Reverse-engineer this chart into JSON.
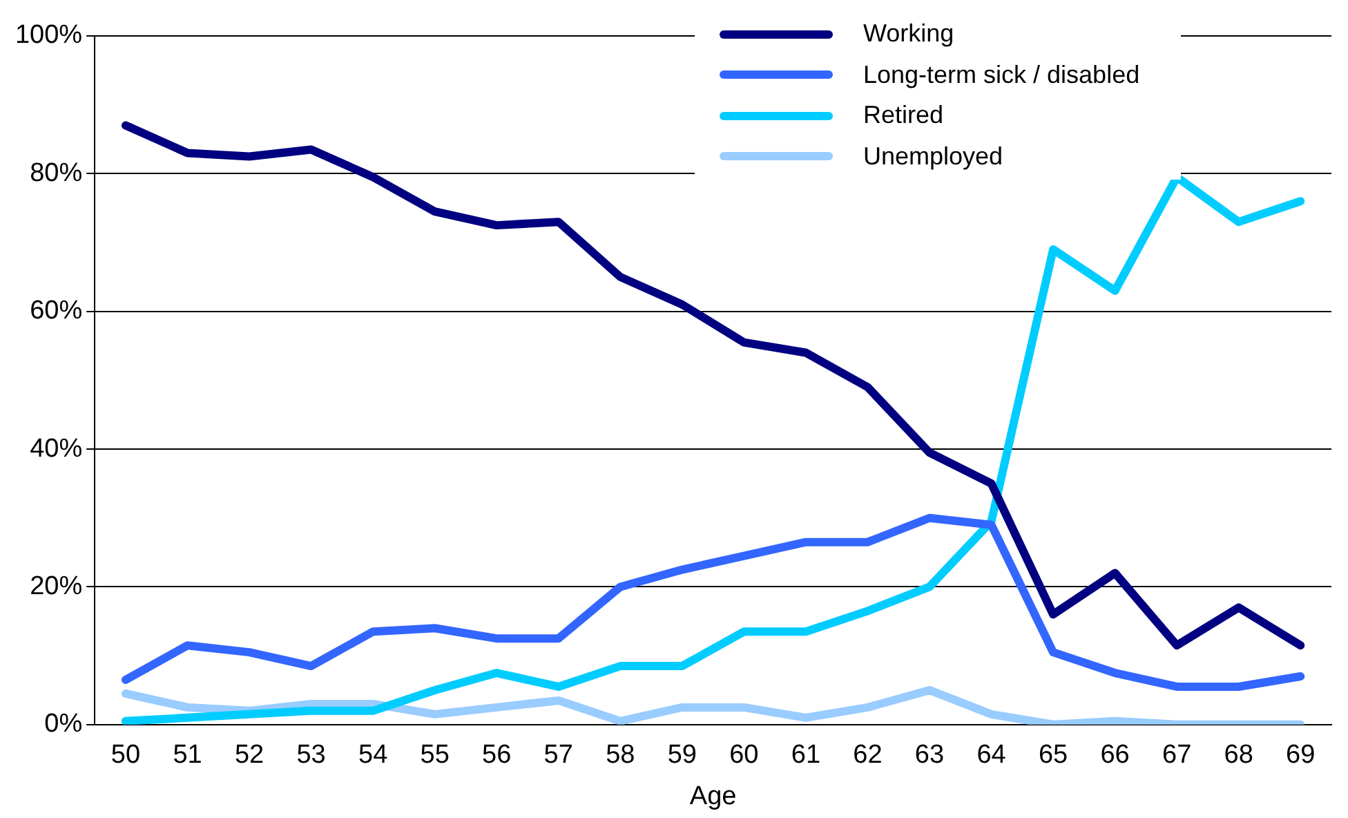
{
  "chart_data": {
    "type": "line",
    "xlabel": "Age",
    "categories": [
      "50",
      "51",
      "52",
      "53",
      "54",
      "55",
      "56",
      "57",
      "58",
      "59",
      "60",
      "61",
      "62",
      "63",
      "64",
      "65",
      "66",
      "67",
      "68",
      "69"
    ],
    "series": [
      {
        "name": "Working",
        "color": "#000080",
        "values": [
          87,
          83,
          82.5,
          83.5,
          79.5,
          74.5,
          72.5,
          73,
          65,
          61,
          55.5,
          54,
          49,
          39.5,
          35,
          16,
          22,
          11.5,
          17,
          11.5
        ]
      },
      {
        "name": "Long-term sick / disabled",
        "color": "#3366ff",
        "values": [
          6.5,
          11.5,
          10.5,
          8.5,
          13.5,
          14,
          12.5,
          12.5,
          20,
          22.5,
          24.5,
          26.5,
          26.5,
          30,
          29,
          10.5,
          7.5,
          5.5,
          5.5,
          7
        ]
      },
      {
        "name": "Retired",
        "color": "#00ccff",
        "values": [
          0.5,
          1,
          1.5,
          2,
          2,
          5,
          7.5,
          5.5,
          8.5,
          8.5,
          13.5,
          13.5,
          16.5,
          20,
          29.5,
          69,
          63,
          79.5,
          73,
          76
        ]
      },
      {
        "name": "Unemployed",
        "color": "#99ccff",
        "values": [
          4.5,
          2.5,
          2,
          3,
          3,
          1.5,
          2.5,
          3.5,
          0.5,
          2.5,
          2.5,
          1,
          2.5,
          5,
          1.5,
          0,
          0.5,
          0,
          0,
          0
        ]
      }
    ],
    "ylim": [
      0,
      100
    ],
    "yticks": [
      {
        "value": 0,
        "label": "0%"
      },
      {
        "value": 20,
        "label": "20%"
      },
      {
        "value": 40,
        "label": "40%"
      },
      {
        "value": 60,
        "label": "60%"
      },
      {
        "value": 80,
        "label": "80%"
      },
      {
        "value": 100,
        "label": "100%"
      }
    ],
    "grid": "y",
    "legend": "top",
    "marker": "none",
    "line_style": "solid"
  }
}
